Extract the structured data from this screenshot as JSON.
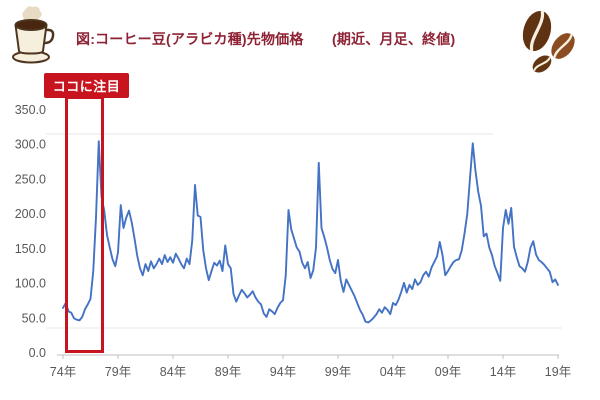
{
  "header": {
    "title": "図:コーヒー豆(アラビカ種)先物価格　　(期近、月足、終値)",
    "title_color": "#8e2335"
  },
  "icons": {
    "left": "coffee-cup-icon",
    "right": "coffee-beans-icon",
    "cup_outline": "#4d3620",
    "cup_fill": "#f6efdd",
    "coffee_fill": "#48260f",
    "steam_fill": "#e7dbc3",
    "bean_dark": "#5f3312",
    "bean_mid": "#8a4c20",
    "bean_small": "#633612",
    "bean_crease": "#f7f0e1"
  },
  "annotation": {
    "label": "ココに注目",
    "box_color": "#c8141e",
    "text_color": "#ffffff",
    "highlight_years": [
      1974.4,
      1977.6
    ]
  },
  "chart_data": {
    "type": "line",
    "title": "コーヒー豆(アラビカ種)先物価格",
    "subtitle": "期近、月足、終値",
    "x_start_year": 1974,
    "x_end_year": 2019,
    "points_per_year": 4,
    "x_tick_labels": [
      "74年",
      "79年",
      "84年",
      "89年",
      "94年",
      "99年",
      "04年",
      "09年",
      "14年",
      "19年"
    ],
    "y_tick_labels": [
      "0.0",
      "50.0",
      "100.0",
      "150.0",
      "200.0",
      "250.0",
      "300.0",
      "350.0"
    ],
    "ylim": [
      0,
      350
    ],
    "grid": "minimal",
    "legend": "none",
    "colors": {
      "line": "#4472c4",
      "axis": "#bfbfbf",
      "tick_text": "#595959",
      "grid": "#e9e9e9"
    },
    "series": [
      {
        "name": "コーヒー豆(アラビカ種)先物価格",
        "color": "#4472c4",
        "values": [
          65,
          72,
          60,
          58,
          50,
          48,
          47,
          52,
          63,
          70,
          78,
          118,
          195,
          305,
          225,
          205,
          170,
          152,
          135,
          125,
          145,
          213,
          180,
          195,
          205,
          188,
          165,
          140,
          122,
          112,
          128,
          118,
          132,
          122,
          128,
          136,
          128,
          141,
          131,
          138,
          130,
          143,
          136,
          128,
          122,
          136,
          128,
          162,
          242,
          198,
          196,
          148,
          122,
          105,
          118,
          130,
          126,
          133,
          118,
          155,
          128,
          122,
          85,
          74,
          83,
          91,
          86,
          80,
          84,
          89,
          80,
          74,
          70,
          57,
          52,
          63,
          60,
          56,
          65,
          72,
          76,
          112,
          206,
          178,
          165,
          152,
          146,
          130,
          122,
          131,
          108,
          119,
          152,
          274,
          180,
          167,
          152,
          134,
          121,
          115,
          134,
          104,
          88,
          106,
          98,
          90,
          82,
          72,
          62,
          55,
          45,
          44,
          47,
          51,
          56,
          63,
          58,
          66,
          62,
          56,
          72,
          69,
          77,
          88,
          101,
          87,
          98,
          92,
          106,
          98,
          102,
          112,
          117,
          110,
          123,
          131,
          139,
          160,
          141,
          112,
          118,
          125,
          131,
          134,
          135,
          148,
          172,
          200,
          252,
          302,
          262,
          232,
          212,
          168,
          172,
          152,
          141,
          125,
          115,
          104,
          180,
          206,
          186,
          209,
          153,
          138,
          125,
          122,
          117,
          131,
          152,
          161,
          142,
          134,
          131,
          127,
          122,
          117,
          102,
          106,
          98
        ]
      }
    ]
  }
}
